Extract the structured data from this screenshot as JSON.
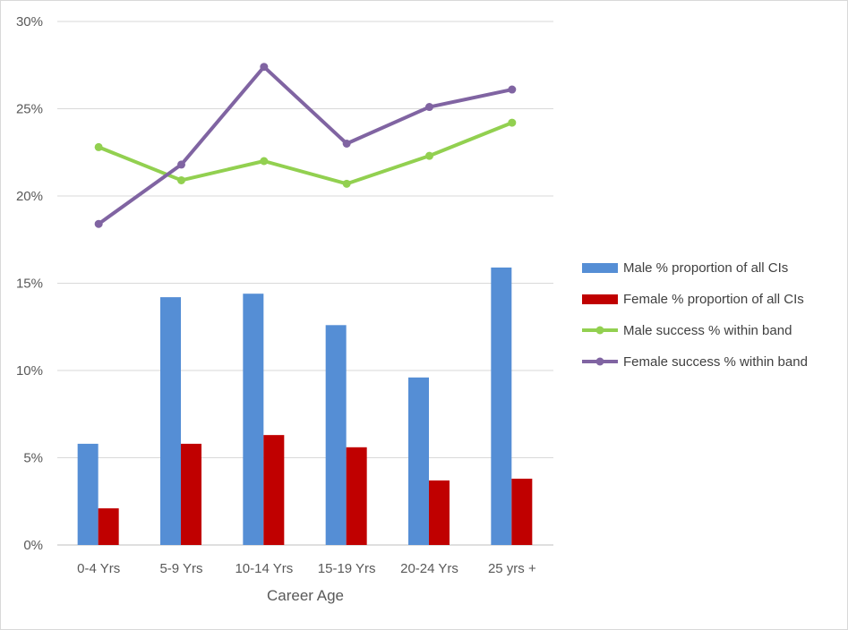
{
  "chart_data": {
    "type": "bar",
    "title": "",
    "xlabel": "Career Age",
    "ylabel": "",
    "ylim": [
      0,
      30
    ],
    "y_ticks": [
      "0%",
      "5%",
      "10%",
      "15%",
      "20%",
      "25%",
      "30%"
    ],
    "y_tick_values": [
      0,
      5,
      10,
      15,
      20,
      25,
      30
    ],
    "grid": "horizontal",
    "legend_position": "right",
    "categories": [
      "0-4 Yrs",
      "5-9 Yrs",
      "10-14 Yrs",
      "15-19 Yrs",
      "20-24 Yrs",
      "25 yrs +"
    ],
    "series": [
      {
        "name": "Male % proportion of all CIs",
        "kind": "bar",
        "color": "#558ed5",
        "values": [
          5.8,
          14.2,
          14.4,
          12.6,
          9.6,
          15.9
        ]
      },
      {
        "name": "Female % proportion of all CIs",
        "kind": "bar",
        "color": "#c00000",
        "values": [
          2.1,
          5.8,
          6.3,
          5.6,
          3.7,
          3.8
        ]
      },
      {
        "name": "Male success % within band",
        "kind": "line",
        "color": "#92d050",
        "values": [
          22.8,
          20.9,
          22.0,
          20.7,
          22.3,
          24.2
        ]
      },
      {
        "name": "Female success % within band",
        "kind": "line",
        "color": "#8064a2",
        "values": [
          18.4,
          21.8,
          27.4,
          23.0,
          25.1,
          26.1
        ]
      }
    ]
  }
}
